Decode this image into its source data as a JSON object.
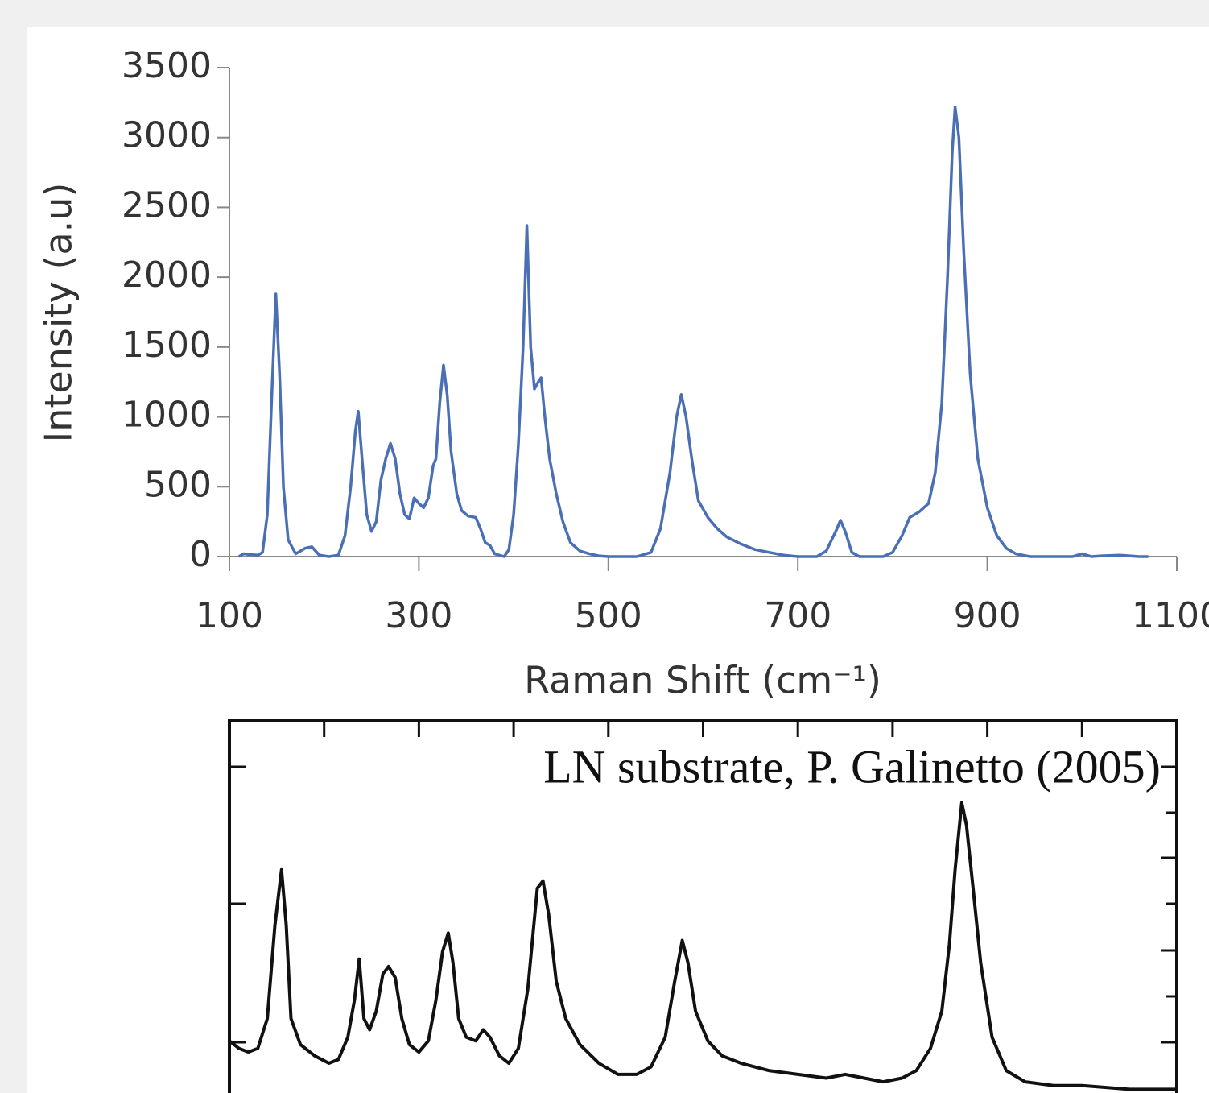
{
  "chart_data": [
    {
      "type": "line",
      "x_label": "Raman Shift (cm⁻¹)",
      "y_label": "Intensity (a.u)",
      "xlim": [
        100,
        1100
      ],
      "xticks": [
        100,
        300,
        500,
        700,
        900,
        1100
      ],
      "ylim": [
        0,
        3500
      ],
      "yticks": [
        0,
        500,
        1000,
        1500,
        2000,
        2500,
        3000,
        3500
      ],
      "x": [
        110,
        115,
        120,
        130,
        135,
        140,
        145,
        149,
        153,
        157,
        162,
        170,
        180,
        187,
        195,
        205,
        215,
        222,
        228,
        233,
        236,
        240,
        245,
        250,
        255,
        260,
        265,
        270,
        275,
        280,
        285,
        290,
        295,
        300,
        305,
        310,
        315,
        318,
        322,
        326,
        330,
        334,
        340,
        345,
        352,
        360,
        365,
        370,
        375,
        380,
        390,
        395,
        400,
        405,
        410,
        414,
        418,
        422,
        426,
        429,
        433,
        438,
        445,
        452,
        460,
        470,
        480,
        490,
        500,
        530,
        545,
        555,
        565,
        572,
        577,
        582,
        588,
        595,
        605,
        615,
        625,
        640,
        655,
        670,
        685,
        700,
        720,
        730,
        740,
        745,
        750,
        757,
        765,
        790,
        800,
        810,
        818,
        828,
        838,
        845,
        852,
        858,
        863,
        866,
        870,
        875,
        882,
        890,
        900,
        910,
        920,
        930,
        945,
        990,
        1000,
        1010,
        1020,
        1040,
        1060,
        1070
      ],
      "series": [
        {
          "color": "#4a6fb5",
          "values": [
            0,
            20,
            15,
            10,
            30,
            300,
            1200,
            1880,
            1300,
            500,
            120,
            20,
            60,
            70,
            10,
            0,
            10,
            150,
            500,
            900,
            1040,
            700,
            300,
            180,
            250,
            550,
            700,
            810,
            700,
            450,
            300,
            270,
            420,
            380,
            350,
            420,
            650,
            700,
            1100,
            1370,
            1150,
            750,
            450,
            330,
            290,
            280,
            200,
            100,
            80,
            20,
            0,
            50,
            300,
            800,
            1500,
            2370,
            1500,
            1200,
            1250,
            1280,
            1000,
            700,
            450,
            250,
            100,
            40,
            20,
            5,
            0,
            0,
            30,
            200,
            600,
            1000,
            1160,
            1000,
            700,
            400,
            280,
            200,
            140,
            90,
            50,
            30,
            10,
            0,
            0,
            40,
            180,
            260,
            180,
            30,
            0,
            0,
            30,
            150,
            280,
            320,
            380,
            600,
            1100,
            2000,
            2900,
            3220,
            3000,
            2200,
            1300,
            700,
            350,
            150,
            60,
            20,
            0,
            0,
            20,
            0,
            5,
            10,
            0,
            0
          ]
        }
      ]
    },
    {
      "type": "line",
      "title": "LN substrate, P. Galinetto (2005)",
      "xlim": [
        100,
        1100
      ],
      "ylim": [
        0,
        100
      ],
      "xticks": [
        200,
        300,
        400,
        500,
        600,
        700,
        800,
        900,
        1000
      ],
      "x": [
        100,
        110,
        120,
        130,
        140,
        148,
        155,
        160,
        165,
        175,
        190,
        205,
        215,
        225,
        232,
        237,
        242,
        248,
        255,
        262,
        268,
        275,
        282,
        290,
        300,
        310,
        318,
        325,
        331,
        336,
        342,
        350,
        360,
        368,
        375,
        385,
        395,
        405,
        415,
        425,
        431,
        437,
        445,
        455,
        470,
        490,
        510,
        530,
        545,
        560,
        570,
        578,
        584,
        592,
        605,
        620,
        640,
        670,
        700,
        730,
        750,
        770,
        790,
        810,
        825,
        840,
        852,
        860,
        866,
        873,
        878,
        885,
        893,
        905,
        920,
        940,
        970,
        1000,
        1050,
        1100
      ],
      "series": [
        {
          "color": "#111111",
          "values": [
            14,
            12,
            11,
            12,
            20,
            45,
            60,
            45,
            20,
            13,
            10,
            8,
            9,
            15,
            25,
            36,
            20,
            17,
            22,
            32,
            34,
            31,
            20,
            13,
            11,
            14,
            25,
            38,
            43,
            35,
            20,
            15,
            14,
            17,
            15,
            10,
            8,
            12,
            28,
            55,
            57,
            48,
            30,
            20,
            13,
            8,
            5,
            5,
            7,
            15,
            30,
            41,
            35,
            22,
            14,
            10,
            8,
            6,
            5,
            4,
            5,
            4,
            3,
            4,
            6,
            12,
            22,
            40,
            60,
            78,
            72,
            55,
            35,
            15,
            6,
            3,
            2,
            2,
            1,
            1
          ]
        }
      ]
    }
  ]
}
